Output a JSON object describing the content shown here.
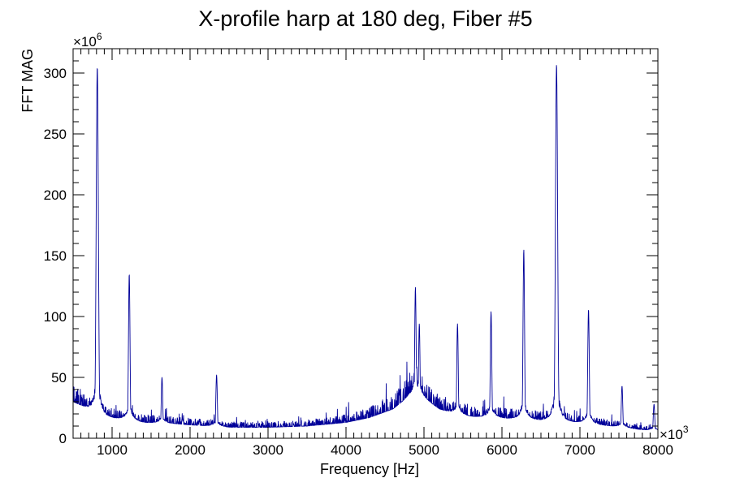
{
  "chart_data": {
    "type": "line",
    "title": "X-profile harp at 180 deg, Fiber #5",
    "xlabel": "Frequency [Hz]",
    "ylabel": "FFT MAG",
    "x_exponent_label": "×10",
    "x_exponent": "3",
    "y_exponent_label": "×10",
    "y_exponent": "6",
    "xlim": [
      500,
      8000
    ],
    "ylim": [
      0,
      320
    ],
    "x_tick_labels": [
      "1000",
      "2000",
      "3000",
      "4000",
      "5000",
      "6000",
      "7000",
      "8000"
    ],
    "y_tick_labels": [
      "0",
      "50",
      "100",
      "150",
      "200",
      "250",
      "300"
    ],
    "grid": false,
    "legend": "none",
    "series": [
      {
        "color": "#000099",
        "baseline": [
          [
            500,
            30
          ],
          [
            700,
            24
          ],
          [
            900,
            18
          ],
          [
            1100,
            16
          ],
          [
            1400,
            13
          ],
          [
            1800,
            12
          ],
          [
            2000,
            11
          ],
          [
            2500,
            9
          ],
          [
            3000,
            9
          ],
          [
            3500,
            10
          ],
          [
            4000,
            13
          ],
          [
            4300,
            17
          ],
          [
            4600,
            24
          ],
          [
            4800,
            34
          ],
          [
            4900,
            37
          ],
          [
            5000,
            33
          ],
          [
            5200,
            24
          ],
          [
            5400,
            20
          ],
          [
            5600,
            18
          ],
          [
            5900,
            17
          ],
          [
            6200,
            16
          ],
          [
            6500,
            15
          ],
          [
            6700,
            15
          ],
          [
            7000,
            13
          ],
          [
            7400,
            10
          ],
          [
            7800,
            7
          ],
          [
            8000,
            6
          ]
        ],
        "peaks": [
          {
            "x": 810,
            "y": 305
          },
          {
            "x": 1220,
            "y": 135
          },
          {
            "x": 1640,
            "y": 50
          },
          {
            "x": 2340,
            "y": 52
          },
          {
            "x": 4890,
            "y": 124
          },
          {
            "x": 4940,
            "y": 94
          },
          {
            "x": 5430,
            "y": 94
          },
          {
            "x": 5860,
            "y": 104
          },
          {
            "x": 6280,
            "y": 155
          },
          {
            "x": 6700,
            "y": 307
          },
          {
            "x": 7110,
            "y": 106
          },
          {
            "x": 7540,
            "y": 43
          },
          {
            "x": 7950,
            "y": 28
          }
        ]
      }
    ]
  }
}
